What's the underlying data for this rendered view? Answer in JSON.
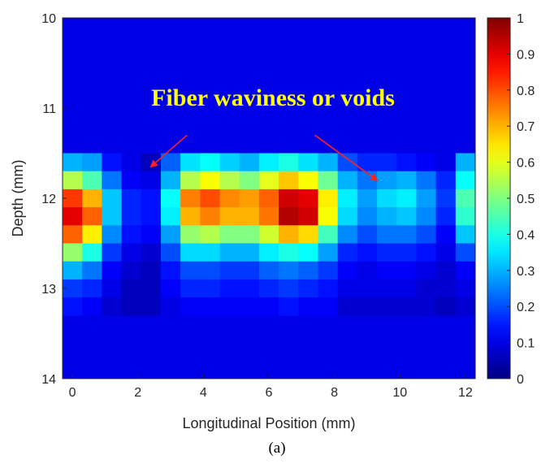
{
  "chart_data": {
    "type": "heatmap",
    "xlabel": "Longitudinal Position (mm)",
    "ylabel": "Depth (mm)",
    "xlim": [
      -0.3,
      12.3
    ],
    "ylim": [
      10,
      14
    ],
    "y_inverted": true,
    "x_ticks": [
      "0",
      "2",
      "4",
      "6",
      "8",
      "10",
      "12"
    ],
    "x_tick_values": [
      0,
      2,
      4,
      6,
      8,
      10,
      12
    ],
    "y_ticks": [
      "10",
      "11",
      "12",
      "13",
      "14"
    ],
    "y_tick_values": [
      10,
      11,
      12,
      13,
      14
    ],
    "colormap": "jet",
    "colorbar": {
      "range": [
        0,
        1
      ],
      "ticks": [
        "0",
        "0.1",
        "0.2",
        "0.3",
        "0.4",
        "0.5",
        "0.6",
        "0.7",
        "0.8",
        "0.9",
        "1"
      ],
      "tick_values": [
        0,
        0.1,
        0.2,
        0.3,
        0.4,
        0.5,
        0.6,
        0.7,
        0.8,
        0.9,
        1
      ]
    },
    "x_positions": [
      0,
      0.6,
      1.2,
      1.8,
      2.4,
      3.0,
      3.6,
      4.2,
      4.8,
      5.4,
      6.0,
      6.6,
      7.2,
      7.8,
      8.4,
      9.0,
      9.6,
      10.2,
      10.8,
      11.4,
      12.0
    ],
    "depth_bins": [
      11.6,
      11.8,
      12.0,
      12.2,
      12.4,
      12.6,
      12.8,
      13.0,
      13.2
    ],
    "intensity": [
      [
        0.3,
        0.28,
        0.14,
        0.1,
        0.06,
        0.22,
        0.35,
        0.38,
        0.33,
        0.3,
        0.36,
        0.4,
        0.35,
        0.3,
        0.2,
        0.16,
        0.16,
        0.14,
        0.12,
        0.1,
        0.3
      ],
      [
        0.55,
        0.45,
        0.24,
        0.12,
        0.1,
        0.3,
        0.55,
        0.62,
        0.55,
        0.5,
        0.6,
        0.68,
        0.62,
        0.48,
        0.3,
        0.24,
        0.28,
        0.3,
        0.24,
        0.16,
        0.38
      ],
      [
        0.82,
        0.7,
        0.32,
        0.16,
        0.14,
        0.38,
        0.75,
        0.8,
        0.74,
        0.72,
        0.78,
        0.92,
        0.9,
        0.64,
        0.36,
        0.28,
        0.34,
        0.36,
        0.28,
        0.18,
        0.45
      ],
      [
        0.9,
        0.78,
        0.32,
        0.16,
        0.14,
        0.36,
        0.7,
        0.75,
        0.7,
        0.7,
        0.76,
        0.95,
        0.92,
        0.62,
        0.34,
        0.26,
        0.3,
        0.32,
        0.26,
        0.16,
        0.42
      ],
      [
        0.78,
        0.64,
        0.26,
        0.14,
        0.12,
        0.28,
        0.52,
        0.55,
        0.5,
        0.5,
        0.58,
        0.7,
        0.66,
        0.44,
        0.26,
        0.2,
        0.24,
        0.24,
        0.2,
        0.12,
        0.32
      ],
      [
        0.52,
        0.4,
        0.18,
        0.1,
        0.08,
        0.2,
        0.34,
        0.34,
        0.3,
        0.3,
        0.36,
        0.4,
        0.38,
        0.28,
        0.16,
        0.14,
        0.16,
        0.16,
        0.14,
        0.1,
        0.2
      ],
      [
        0.3,
        0.24,
        0.12,
        0.08,
        0.06,
        0.14,
        0.2,
        0.2,
        0.18,
        0.18,
        0.22,
        0.24,
        0.22,
        0.18,
        0.12,
        0.1,
        0.12,
        0.12,
        0.1,
        0.08,
        0.12
      ],
      [
        0.18,
        0.16,
        0.1,
        0.06,
        0.06,
        0.12,
        0.16,
        0.16,
        0.14,
        0.14,
        0.16,
        0.18,
        0.16,
        0.14,
        0.1,
        0.1,
        0.1,
        0.1,
        0.08,
        0.08,
        0.1
      ],
      [
        0.14,
        0.12,
        0.08,
        0.06,
        0.06,
        0.1,
        0.12,
        0.12,
        0.12,
        0.12,
        0.12,
        0.14,
        0.12,
        0.12,
        0.08,
        0.08,
        0.08,
        0.08,
        0.08,
        0.06,
        0.08
      ]
    ],
    "background_value": 0.1,
    "annotations": [
      {
        "text": "Fiber waviness or voids",
        "color": "#ffff00"
      }
    ],
    "annotation_arrows": [
      {
        "from": [
          3.5,
          11.3
        ],
        "to": [
          2.4,
          11.65
        ],
        "color": "#ff2020"
      },
      {
        "from": [
          7.4,
          11.3
        ],
        "to": [
          9.3,
          11.8
        ],
        "color": "#ff2020"
      }
    ]
  },
  "caption": "(a)"
}
